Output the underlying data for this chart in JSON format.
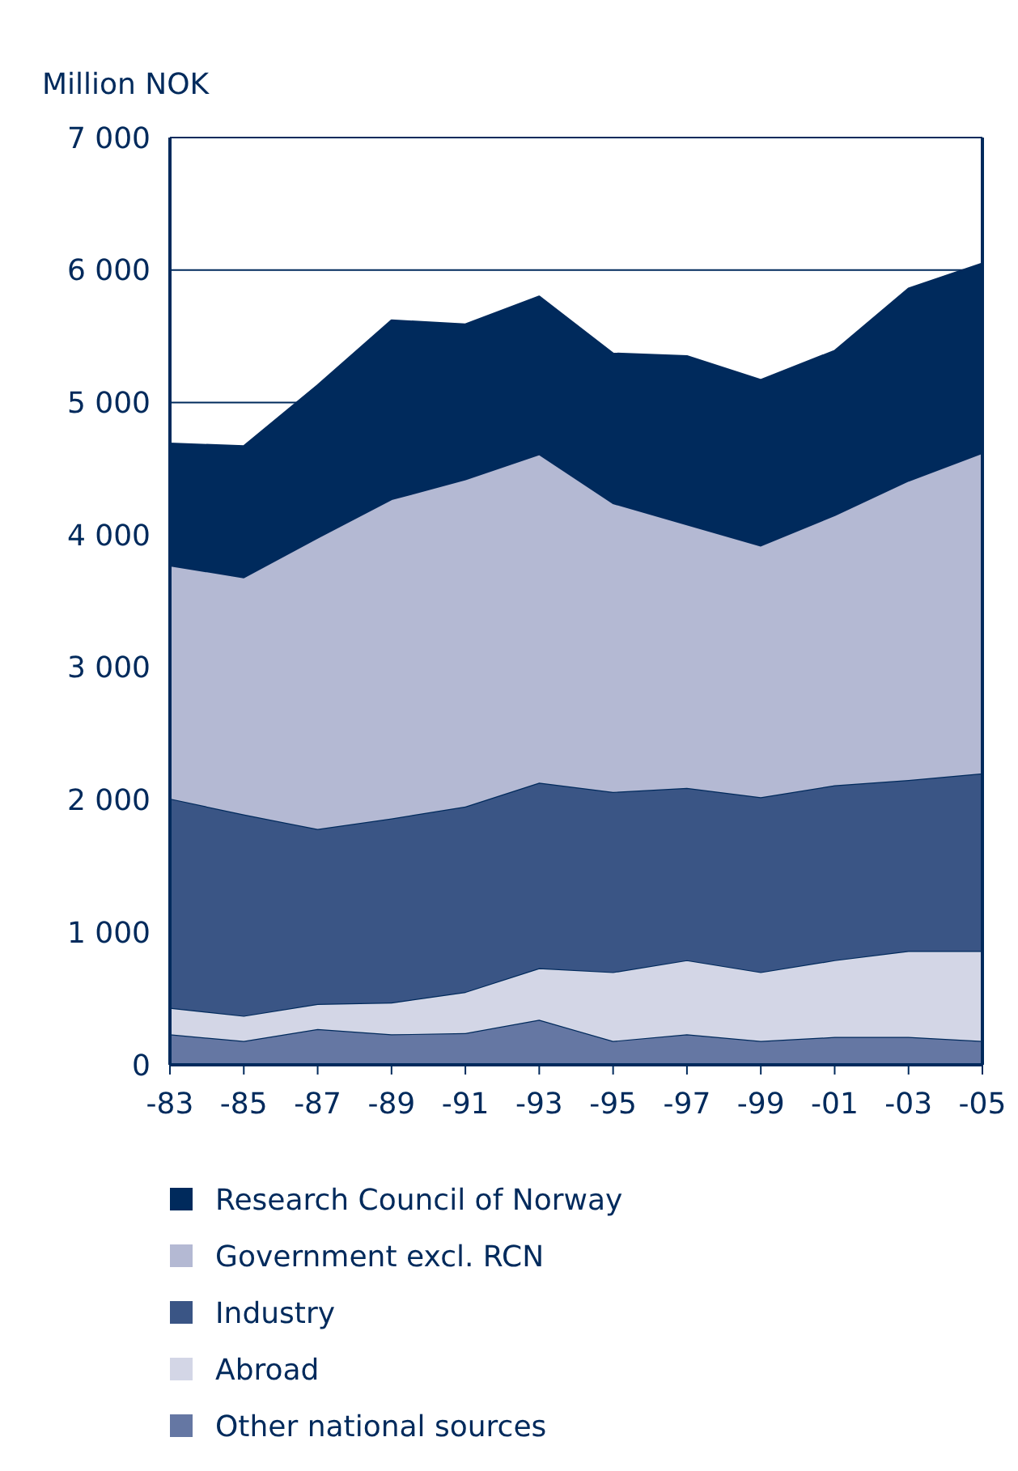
{
  "chart_data": {
    "type": "area",
    "stacked": true,
    "ylabel": "Million NOK",
    "categories": [
      "-83",
      "-85",
      "-87",
      "-89",
      "-91",
      "-93",
      "-95",
      "-97",
      "-99",
      "-01",
      "-03",
      "-05"
    ],
    "ylim": [
      0,
      7000
    ],
    "yticks": [
      0,
      {
        "value": 1000,
        "label": "1 000"
      },
      {
        "value": 2000,
        "label": "2 000"
      },
      {
        "value": 3000,
        "label": "3 000"
      },
      {
        "value": 4000,
        "label": "4 000"
      },
      {
        "value": 5000,
        "label": "5 000"
      },
      {
        "value": 6000,
        "label": "6 000"
      },
      {
        "value": 7000,
        "label": "7 000"
      }
    ],
    "grid": "y",
    "legend": "bottom",
    "series": [
      {
        "name": "Other national sources",
        "color": "#6577a3",
        "values": [
          230,
          180,
          270,
          230,
          240,
          340,
          180,
          230,
          180,
          210,
          210,
          180
        ]
      },
      {
        "name": "Abroad",
        "color": "#d3d6e6",
        "values": [
          200,
          190,
          190,
          240,
          310,
          390,
          520,
          560,
          520,
          580,
          650,
          680
        ]
      },
      {
        "name": "Industry",
        "color": "#3a5585",
        "values": [
          1580,
          1520,
          1320,
          1390,
          1400,
          1400,
          1360,
          1300,
          1320,
          1320,
          1290,
          1340
        ]
      },
      {
        "name": "Government excl. RCN",
        "color": "#b4b9d3",
        "values": [
          1760,
          1790,
          2200,
          2410,
          2470,
          2480,
          2180,
          1990,
          1900,
          2040,
          2260,
          2420
        ]
      },
      {
        "name": "Research Council of Norway",
        "color": "#002a5c",
        "values": [
          920,
          990,
          1150,
          1350,
          1170,
          1190,
          1130,
          1270,
          1250,
          1240,
          1450,
          1430
        ]
      }
    ]
  }
}
